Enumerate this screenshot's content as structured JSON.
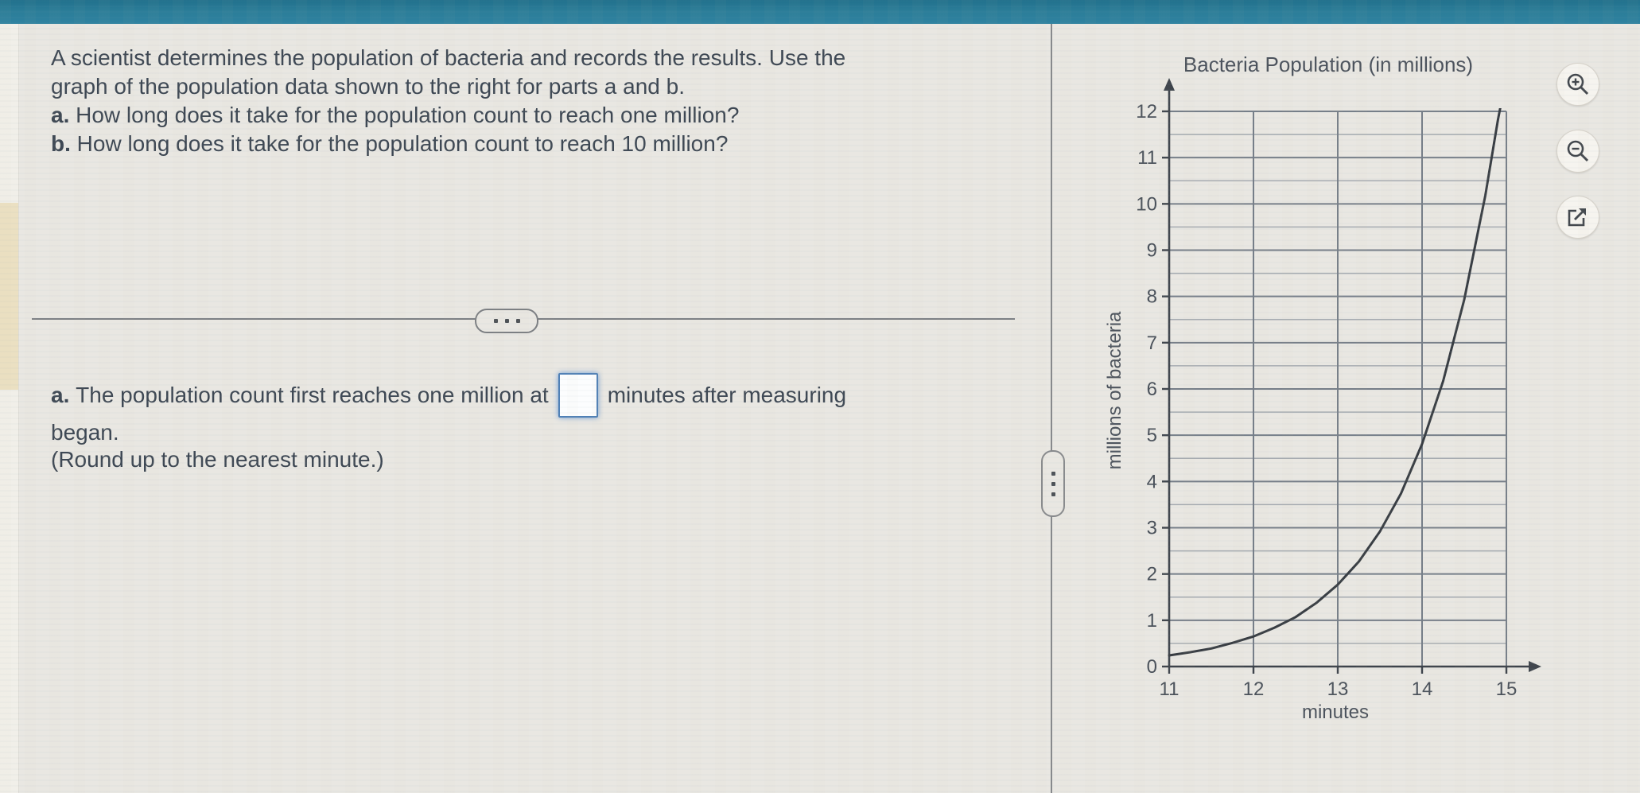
{
  "window": {
    "top_bar_color": "#2b7d98",
    "background_color": "#e9e7e2",
    "accent_input_border": "#4f80b6"
  },
  "problem": {
    "line1": "A scientist determines the population of bacteria and records the results. Use the",
    "line2": "graph of the population data shown to the right for parts a and b.",
    "item_a": {
      "label": "a.",
      "text": "How long does it take for the population count to reach one million?"
    },
    "item_b": {
      "label": "b.",
      "text": "How long does it take for the population count to reach 10 million?"
    }
  },
  "dividers": {
    "horizontal_handle_icon": "ellipsis-dots",
    "vertical_handle_icon": "ellipsis-dots-vertical"
  },
  "answer": {
    "label": "a.",
    "before_input": "The population count first reaches one million at",
    "input_value": "",
    "after_input": "minutes after measuring",
    "line2": "began.",
    "note": "(Round up to the nearest minute.)"
  },
  "graph_tools": {
    "zoom_in_icon": "magnifier-plus",
    "zoom_out_icon": "magnifier-minus",
    "expand_icon": "external-link"
  },
  "chart_data": {
    "type": "line",
    "title": "Bacteria Population (in millions)",
    "xlabel": "minutes",
    "ylabel": "millions of bacteria",
    "xlim": [
      11,
      15
    ],
    "ylim": [
      0,
      12
    ],
    "x_ticks": [
      11,
      12,
      13,
      14,
      15
    ],
    "y_ticks": [
      0,
      1,
      2,
      3,
      4,
      5,
      6,
      7,
      8,
      9,
      10,
      11,
      12
    ],
    "minor_y_step": 0.5,
    "grid": true,
    "legend": "none",
    "series": [
      {
        "name": "bacteria population",
        "points": [
          [
            11.0,
            0.24
          ],
          [
            11.25,
            0.31
          ],
          [
            11.5,
            0.39
          ],
          [
            11.75,
            0.51
          ],
          [
            12.0,
            0.65
          ],
          [
            12.25,
            0.84
          ],
          [
            12.5,
            1.07
          ],
          [
            12.75,
            1.38
          ],
          [
            13.0,
            1.77
          ],
          [
            13.25,
            2.27
          ],
          [
            13.5,
            2.92
          ],
          [
            13.75,
            3.74
          ],
          [
            14.0,
            4.81
          ],
          [
            14.25,
            6.17
          ],
          [
            14.5,
            7.93
          ],
          [
            14.75,
            10.18
          ],
          [
            14.9,
            11.82
          ],
          [
            14.93,
            12.1
          ]
        ]
      }
    ],
    "readings": {
      "reaches_1_million_at_minutes": 12.4,
      "reaches_12_million_at_minutes": 14.9
    }
  }
}
